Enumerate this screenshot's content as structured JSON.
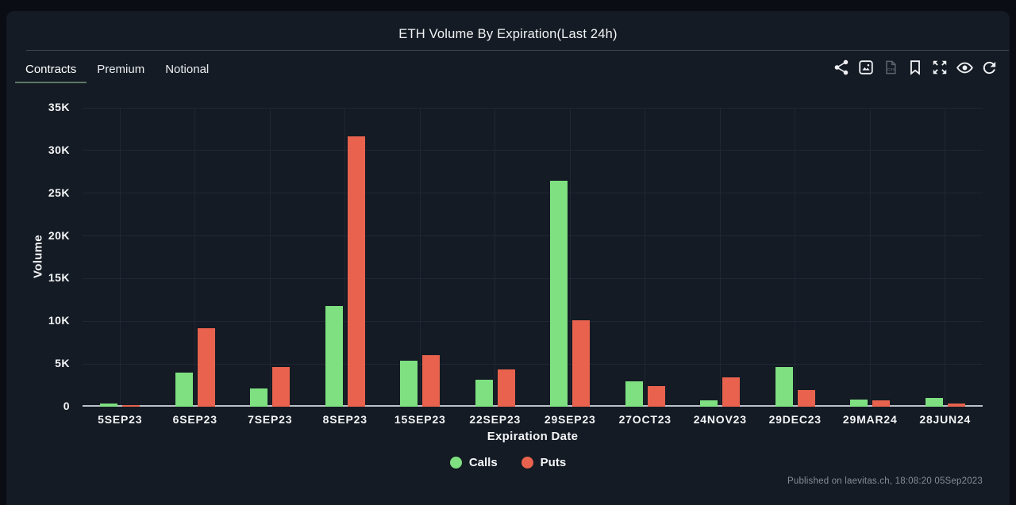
{
  "title": "ETH Volume By Expiration(Last 24h)",
  "tabs": [
    {
      "label": "Contracts",
      "active": true
    },
    {
      "label": "Premium",
      "active": false
    },
    {
      "label": "Notional",
      "active": false
    }
  ],
  "toolbar": {
    "icons": [
      "share-icon",
      "export-image-icon",
      "export-csv-icon",
      "bookmark-icon",
      "fullscreen-icon",
      "visibility-icon",
      "refresh-icon"
    ]
  },
  "chart_data": {
    "type": "bar",
    "title": "ETH Volume By Expiration(Last 24h)",
    "xlabel": "Expiration Date",
    "ylabel": "Volume",
    "ylim": [
      0,
      35000
    ],
    "ytick_step": 5000,
    "ytick_labels": [
      "0",
      "5K",
      "10K",
      "15K",
      "20K",
      "25K",
      "30K",
      "35K"
    ],
    "grid": true,
    "legend_position": "bottom",
    "categories": [
      "5SEP23",
      "6SEP23",
      "7SEP23",
      "8SEP23",
      "15SEP23",
      "22SEP23",
      "29SEP23",
      "27OCT23",
      "24NOV23",
      "29DEC23",
      "29MAR24",
      "28JUN24"
    ],
    "series": [
      {
        "name": "Calls",
        "color": "#7ee081",
        "values": [
          350,
          3950,
          2150,
          11800,
          5350,
          3150,
          26450,
          2950,
          750,
          4650,
          850,
          1050
        ]
      },
      {
        "name": "Puts",
        "color": "#e8624e",
        "values": [
          200,
          9150,
          4650,
          31700,
          6000,
          4350,
          10100,
          2450,
          3450,
          1950,
          700,
          350
        ]
      }
    ]
  },
  "footer": {
    "published": "Published on laevitas.ch, 18:08:20 05Sep2023"
  },
  "colors": {
    "calls": "#7ee081",
    "puts": "#e8624e",
    "accent_underline": "#5c7866",
    "panel": "#141b24",
    "page": "#0a0d13"
  }
}
